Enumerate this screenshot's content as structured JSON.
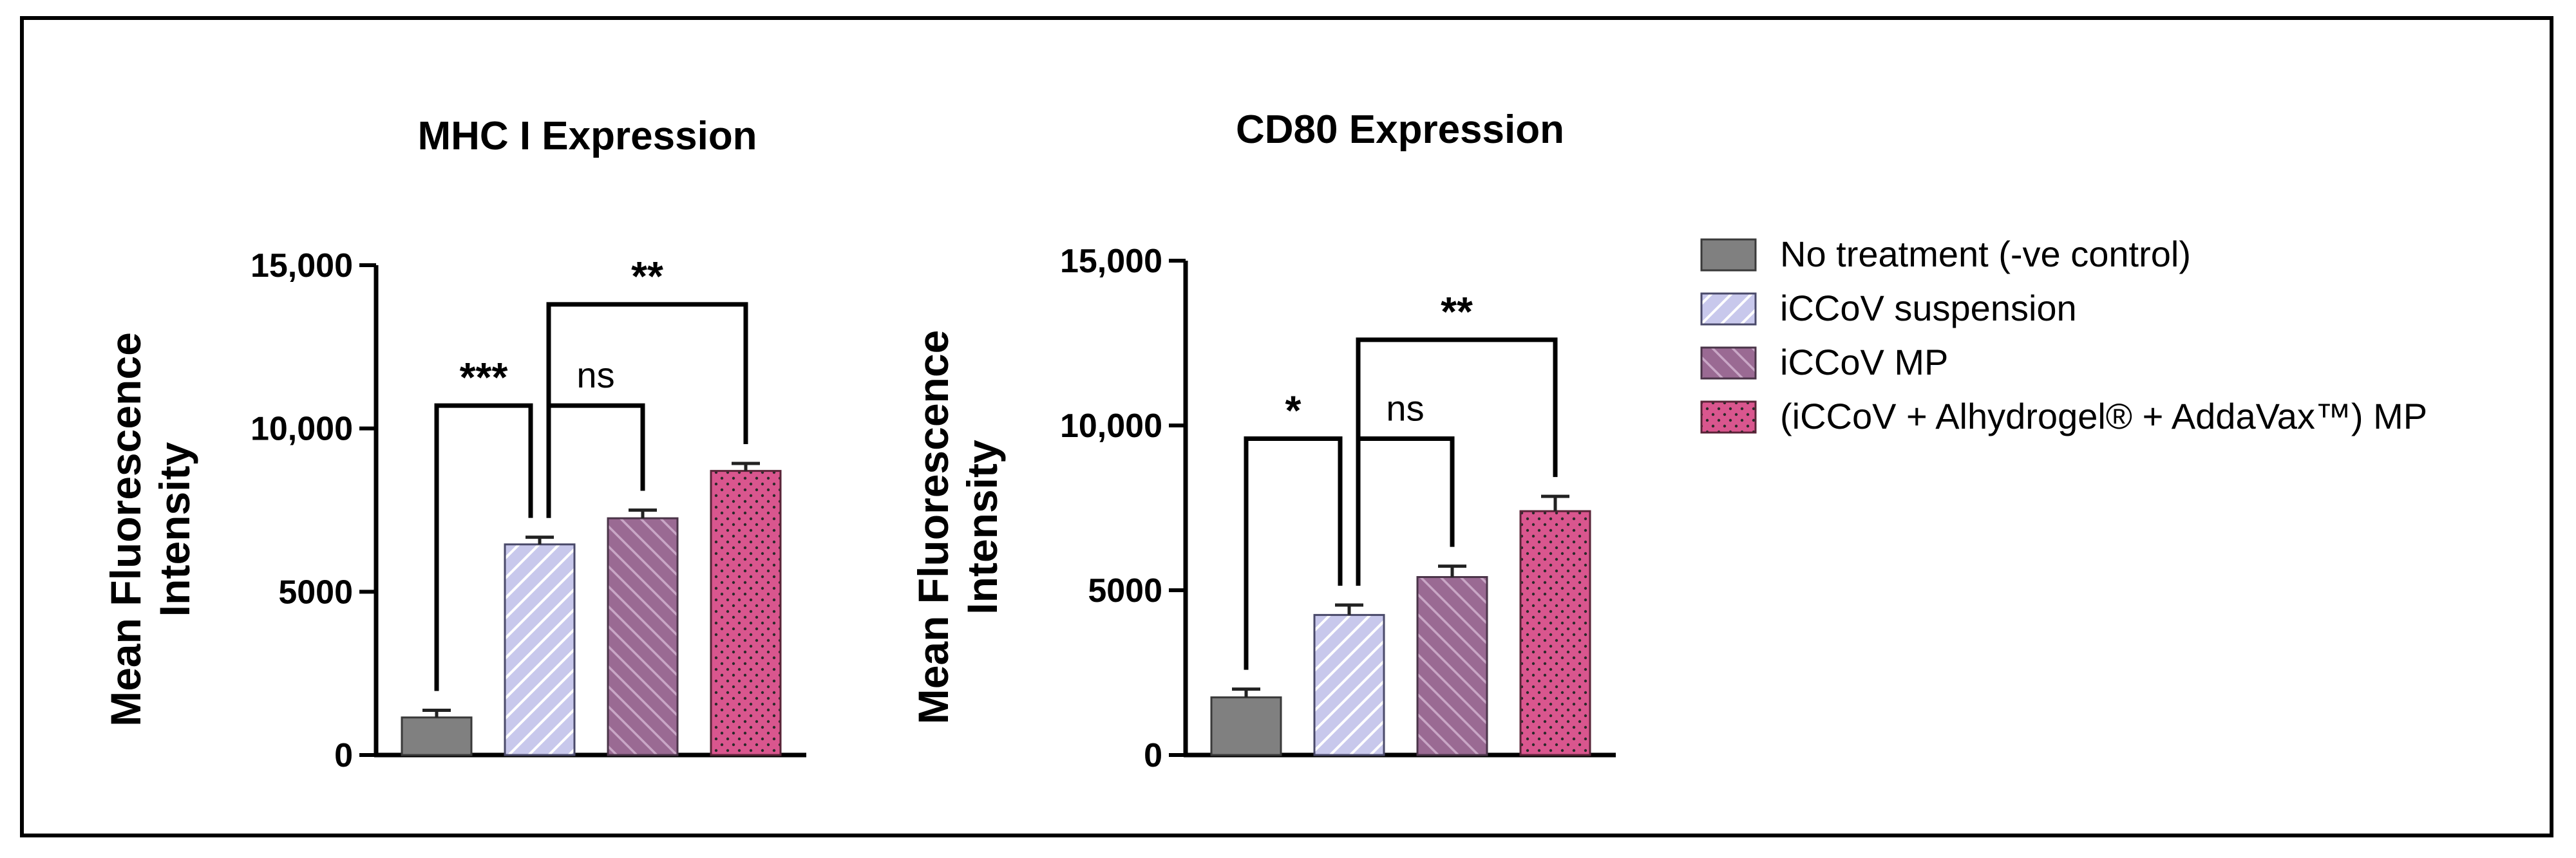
{
  "chart_data": [
    {
      "type": "bar",
      "title": "MHC I Expression",
      "ylabel": "Mean Fluorescence Intensity",
      "ylim": [
        0,
        15000
      ],
      "yticks": [
        0,
        5000,
        10000,
        15000
      ],
      "ytick_labels": [
        "0",
        "5000",
        "10,000",
        "15,000"
      ],
      "categories": [
        "No treatment (-ve control)",
        "iCCoV suspension",
        "iCCoV MP",
        "(iCCoV + Alhydrogel® + AddaVax™) MP"
      ],
      "values": [
        1150,
        6450,
        7250,
        8700
      ],
      "errors": [
        220,
        220,
        250,
        230
      ],
      "comparisons": [
        {
          "from": 0,
          "to": 1,
          "label": "***",
          "y": 10700
        },
        {
          "from": 1,
          "to": 2,
          "label": "ns",
          "y": 10700
        },
        {
          "from": 1,
          "to": 3,
          "label": "**",
          "y": 13800
        }
      ]
    },
    {
      "type": "bar",
      "title": "CD80 Expression",
      "ylabel": "Mean Fluorescence Intensity",
      "ylim": [
        0,
        15000
      ],
      "yticks": [
        0,
        5000,
        10000,
        15000
      ],
      "ytick_labels": [
        "0",
        "5000",
        "10,000",
        "15,000"
      ],
      "categories": [
        "No treatment (-ve control)",
        "iCCoV suspension",
        "iCCoV MP",
        "(iCCoV + Alhydrogel® + AddaVax™) MP"
      ],
      "values": [
        1750,
        4250,
        5400,
        7400
      ],
      "errors": [
        250,
        300,
        330,
        450
      ],
      "comparisons": [
        {
          "from": 0,
          "to": 1,
          "label": "*",
          "y": 9600
        },
        {
          "from": 1,
          "to": 2,
          "label": "ns",
          "y": 9600
        },
        {
          "from": 1,
          "to": 3,
          "label": "**",
          "y": 12600
        }
      ]
    }
  ],
  "legend": {
    "placement": "right",
    "items": [
      {
        "label": "No treatment (-ve control)",
        "pattern": "solid-gray"
      },
      {
        "label": "iCCoV suspension",
        "pattern": "hatch-lavender"
      },
      {
        "label": "iCCoV MP",
        "pattern": "hatch-purple"
      },
      {
        "label": "(iCCoV + Alhydrogel® + AddaVax™) MP",
        "pattern": "dots-pink"
      }
    ]
  },
  "colors": {
    "gray": "#808080",
    "lavender": "#c8c8ec",
    "purple": "#9a6a93",
    "pink": "#d9568e"
  }
}
